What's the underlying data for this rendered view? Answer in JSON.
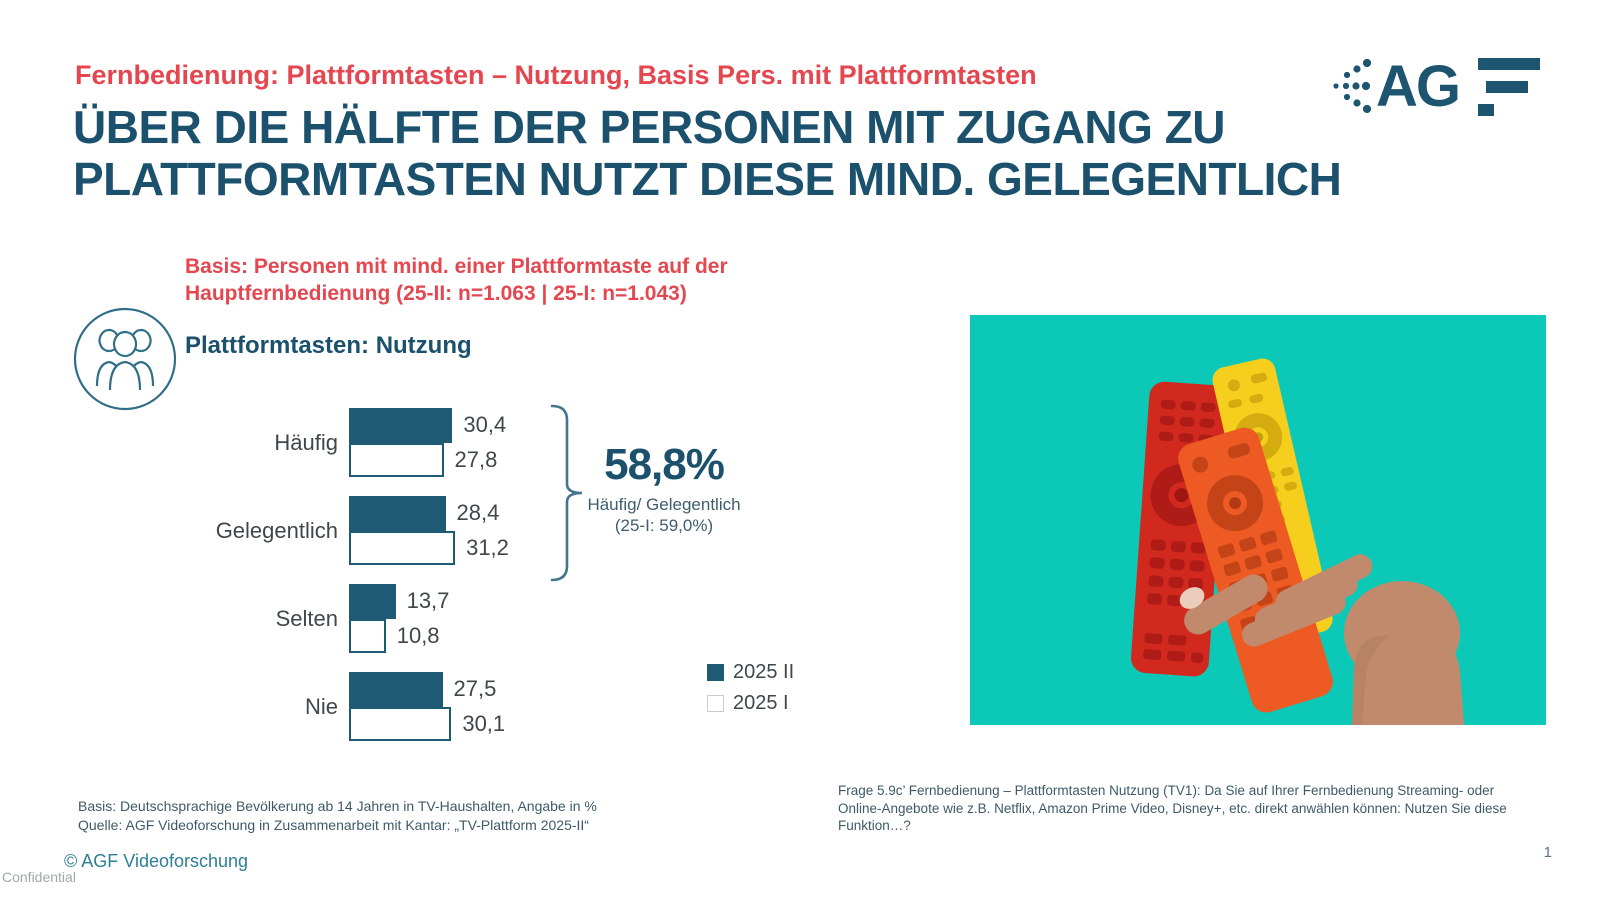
{
  "slide": {
    "kicker": "Fernbedienung: Plattformtasten – Nutzung, Basis Pers. mit Plattformtasten",
    "headline": "ÜBER DIE HÄLFTE DER PERSONEN MIT ZUGANG ZU\nPLATTFORMTASTEN NUTZT DIESE MIND. GELEGENTLICH",
    "logo_letters": "AG",
    "page_number": "1",
    "confidential": "Confidential",
    "copyright": "© AGF Videoforschung"
  },
  "chart_section": {
    "basis_note": "Basis: Personen mit mind. einer Plattformtaste auf der\nHauptfernbedienung (25-II: n=1.063 | 25-I: n=1.043)",
    "title": "Plattformtasten: Nutzung"
  },
  "chart_data": {
    "type": "bar",
    "orientation": "horizontal",
    "unit": "%",
    "categories": [
      "Häufig",
      "Gelegentlich",
      "Selten",
      "Nie"
    ],
    "series": [
      {
        "name": "2025 II",
        "style": "filled",
        "color": "#1E5A74",
        "values": [
          30.4,
          28.4,
          13.7,
          27.5
        ],
        "labels": [
          "30,4",
          "28,4",
          "13,7",
          "27,5"
        ]
      },
      {
        "name": "2025 I",
        "style": "outline",
        "color": "#FFFFFF",
        "values": [
          27.8,
          31.2,
          10.8,
          30.1
        ],
        "labels": [
          "27,8",
          "31,2",
          "10,8",
          "30,1"
        ]
      }
    ],
    "xlim": [
      0,
      35
    ],
    "grid": false,
    "legend_position": "right",
    "annotation": {
      "value": "58,8%",
      "label": "Häufig/ Gelegentlich",
      "sub": "(25-I: 59,0%)",
      "grouped_categories": [
        "Häufig",
        "Gelegentlich"
      ]
    }
  },
  "footnotes": {
    "left_line1": "Basis: Deutschsprachige Bevölkerung ab 14 Jahren in TV-Haushalten, Angabe in %",
    "left_line2": "Quelle: AGF Videoforschung in Zusammenarbeit mit Kantar: „TV-Plattform 2025-II“",
    "right_question": "Frage 5.9c’ Fernbedienung – Plattformtasten Nutzung (TV1): Da Sie auf Ihrer Fernbedienung Streaming- oder Online-Angebote wie z.B. Netflix, Amazon Prime Video, Disney+, etc. direkt anwählen können: Nutzen Sie diese Funktion…?"
  },
  "colors": {
    "accent_dark_teal": "#1B516D",
    "accent_red": "#E4474F",
    "bar_fill": "#1E5A74",
    "photo_background": "#0BC9B6",
    "copyright_teal": "#2E7E98"
  }
}
